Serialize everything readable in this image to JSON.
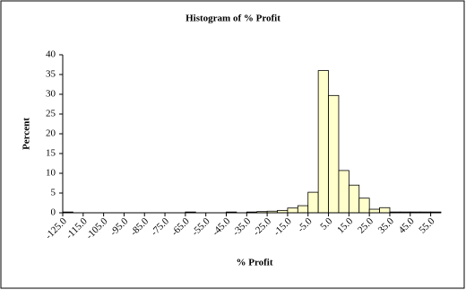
{
  "chart_data": {
    "type": "histogram",
    "title": "Histogram of % Profit",
    "x_label": "% Profit",
    "y_label": "Percent",
    "bins": [
      -125,
      -120,
      -115,
      -110,
      -105,
      -100,
      -95,
      -90,
      -85,
      -80,
      -75,
      -70,
      -65,
      -60,
      -55,
      -50,
      -45,
      -40,
      -35,
      -30,
      -25,
      -20,
      -15,
      -10,
      -5,
      0,
      5,
      10,
      15,
      20,
      25,
      30,
      35,
      40,
      45,
      50,
      55,
      60
    ],
    "values": [
      0.2,
      0,
      0,
      0,
      0,
      0,
      0,
      0,
      0,
      0,
      0,
      0,
      0.2,
      0,
      0,
      0,
      0.2,
      0,
      0.2,
      0.3,
      0.4,
      0.6,
      1.2,
      1.8,
      5.2,
      36,
      29.7,
      10.7,
      7,
      3.7,
      0.9,
      1.3,
      0.2,
      0.2,
      0.2,
      0.2,
      0.2
    ],
    "color": "#ffffcc",
    "xlim": [
      -125,
      60
    ],
    "xticks": [
      {
        "value": -125,
        "label": "-125.0"
      },
      {
        "value": -115,
        "label": "-115.0"
      },
      {
        "value": -105,
        "label": "-105.0"
      },
      {
        "value": -95,
        "label": "-95.0"
      },
      {
        "value": -85,
        "label": "-85.0"
      },
      {
        "value": -75,
        "label": "-75.0"
      },
      {
        "value": -65,
        "label": "-65.0"
      },
      {
        "value": -55,
        "label": "-55.0"
      },
      {
        "value": -45,
        "label": "-45.0"
      },
      {
        "value": -35,
        "label": "-35.0"
      },
      {
        "value": -25,
        "label": "-25.0"
      },
      {
        "value": -15,
        "label": "-15.0"
      },
      {
        "value": -5,
        "label": "-5.0"
      },
      {
        "value": 5,
        "label": "5.0"
      },
      {
        "value": 15,
        "label": "15.0"
      },
      {
        "value": 25,
        "label": "25.0"
      },
      {
        "value": 35,
        "label": "35.0"
      },
      {
        "value": 45,
        "label": "45.0"
      },
      {
        "value": 55,
        "label": "55.0"
      }
    ],
    "ylim": [
      0,
      40
    ],
    "yticks": [
      0,
      5,
      10,
      15,
      20,
      25,
      30,
      35,
      40
    ],
    "grid": false
  }
}
